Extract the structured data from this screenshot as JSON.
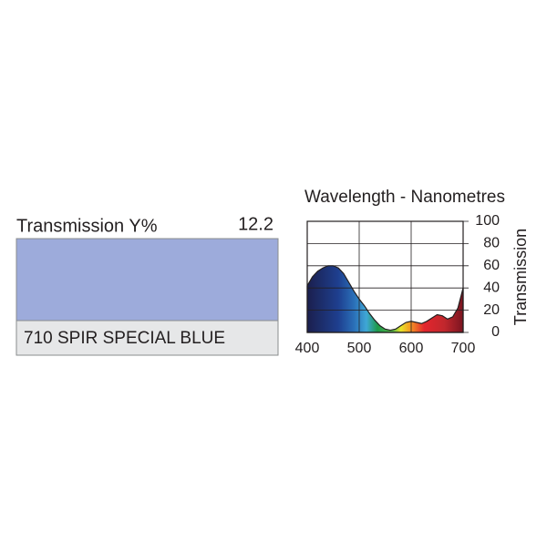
{
  "filter": {
    "transmission_label": "Transmission Y%",
    "transmission_value": "12.2",
    "name": "710 SPIR SPECIAL BLUE",
    "swatch_color": "#9dabdb"
  },
  "chart_data": {
    "type": "area",
    "title": "Wavelength - Nanometres",
    "y_label": "Transmission",
    "x": [
      400,
      410,
      420,
      430,
      440,
      450,
      460,
      470,
      480,
      490,
      500,
      510,
      520,
      530,
      540,
      550,
      560,
      570,
      580,
      590,
      600,
      610,
      620,
      630,
      640,
      650,
      660,
      670,
      680,
      690,
      700
    ],
    "values": [
      42,
      50,
      55,
      58,
      60,
      60,
      58,
      53,
      45,
      37,
      30,
      24,
      17,
      11,
      6,
      3,
      2,
      3,
      6,
      9,
      10,
      9,
      8,
      10,
      13,
      16,
      15,
      12,
      14,
      22,
      40
    ],
    "xlim": [
      400,
      700
    ],
    "xticks": [
      400,
      500,
      600,
      700
    ],
    "ylim": [
      0,
      100
    ],
    "yticks": [
      0,
      20,
      40,
      60,
      80,
      100
    ],
    "grid": true
  }
}
